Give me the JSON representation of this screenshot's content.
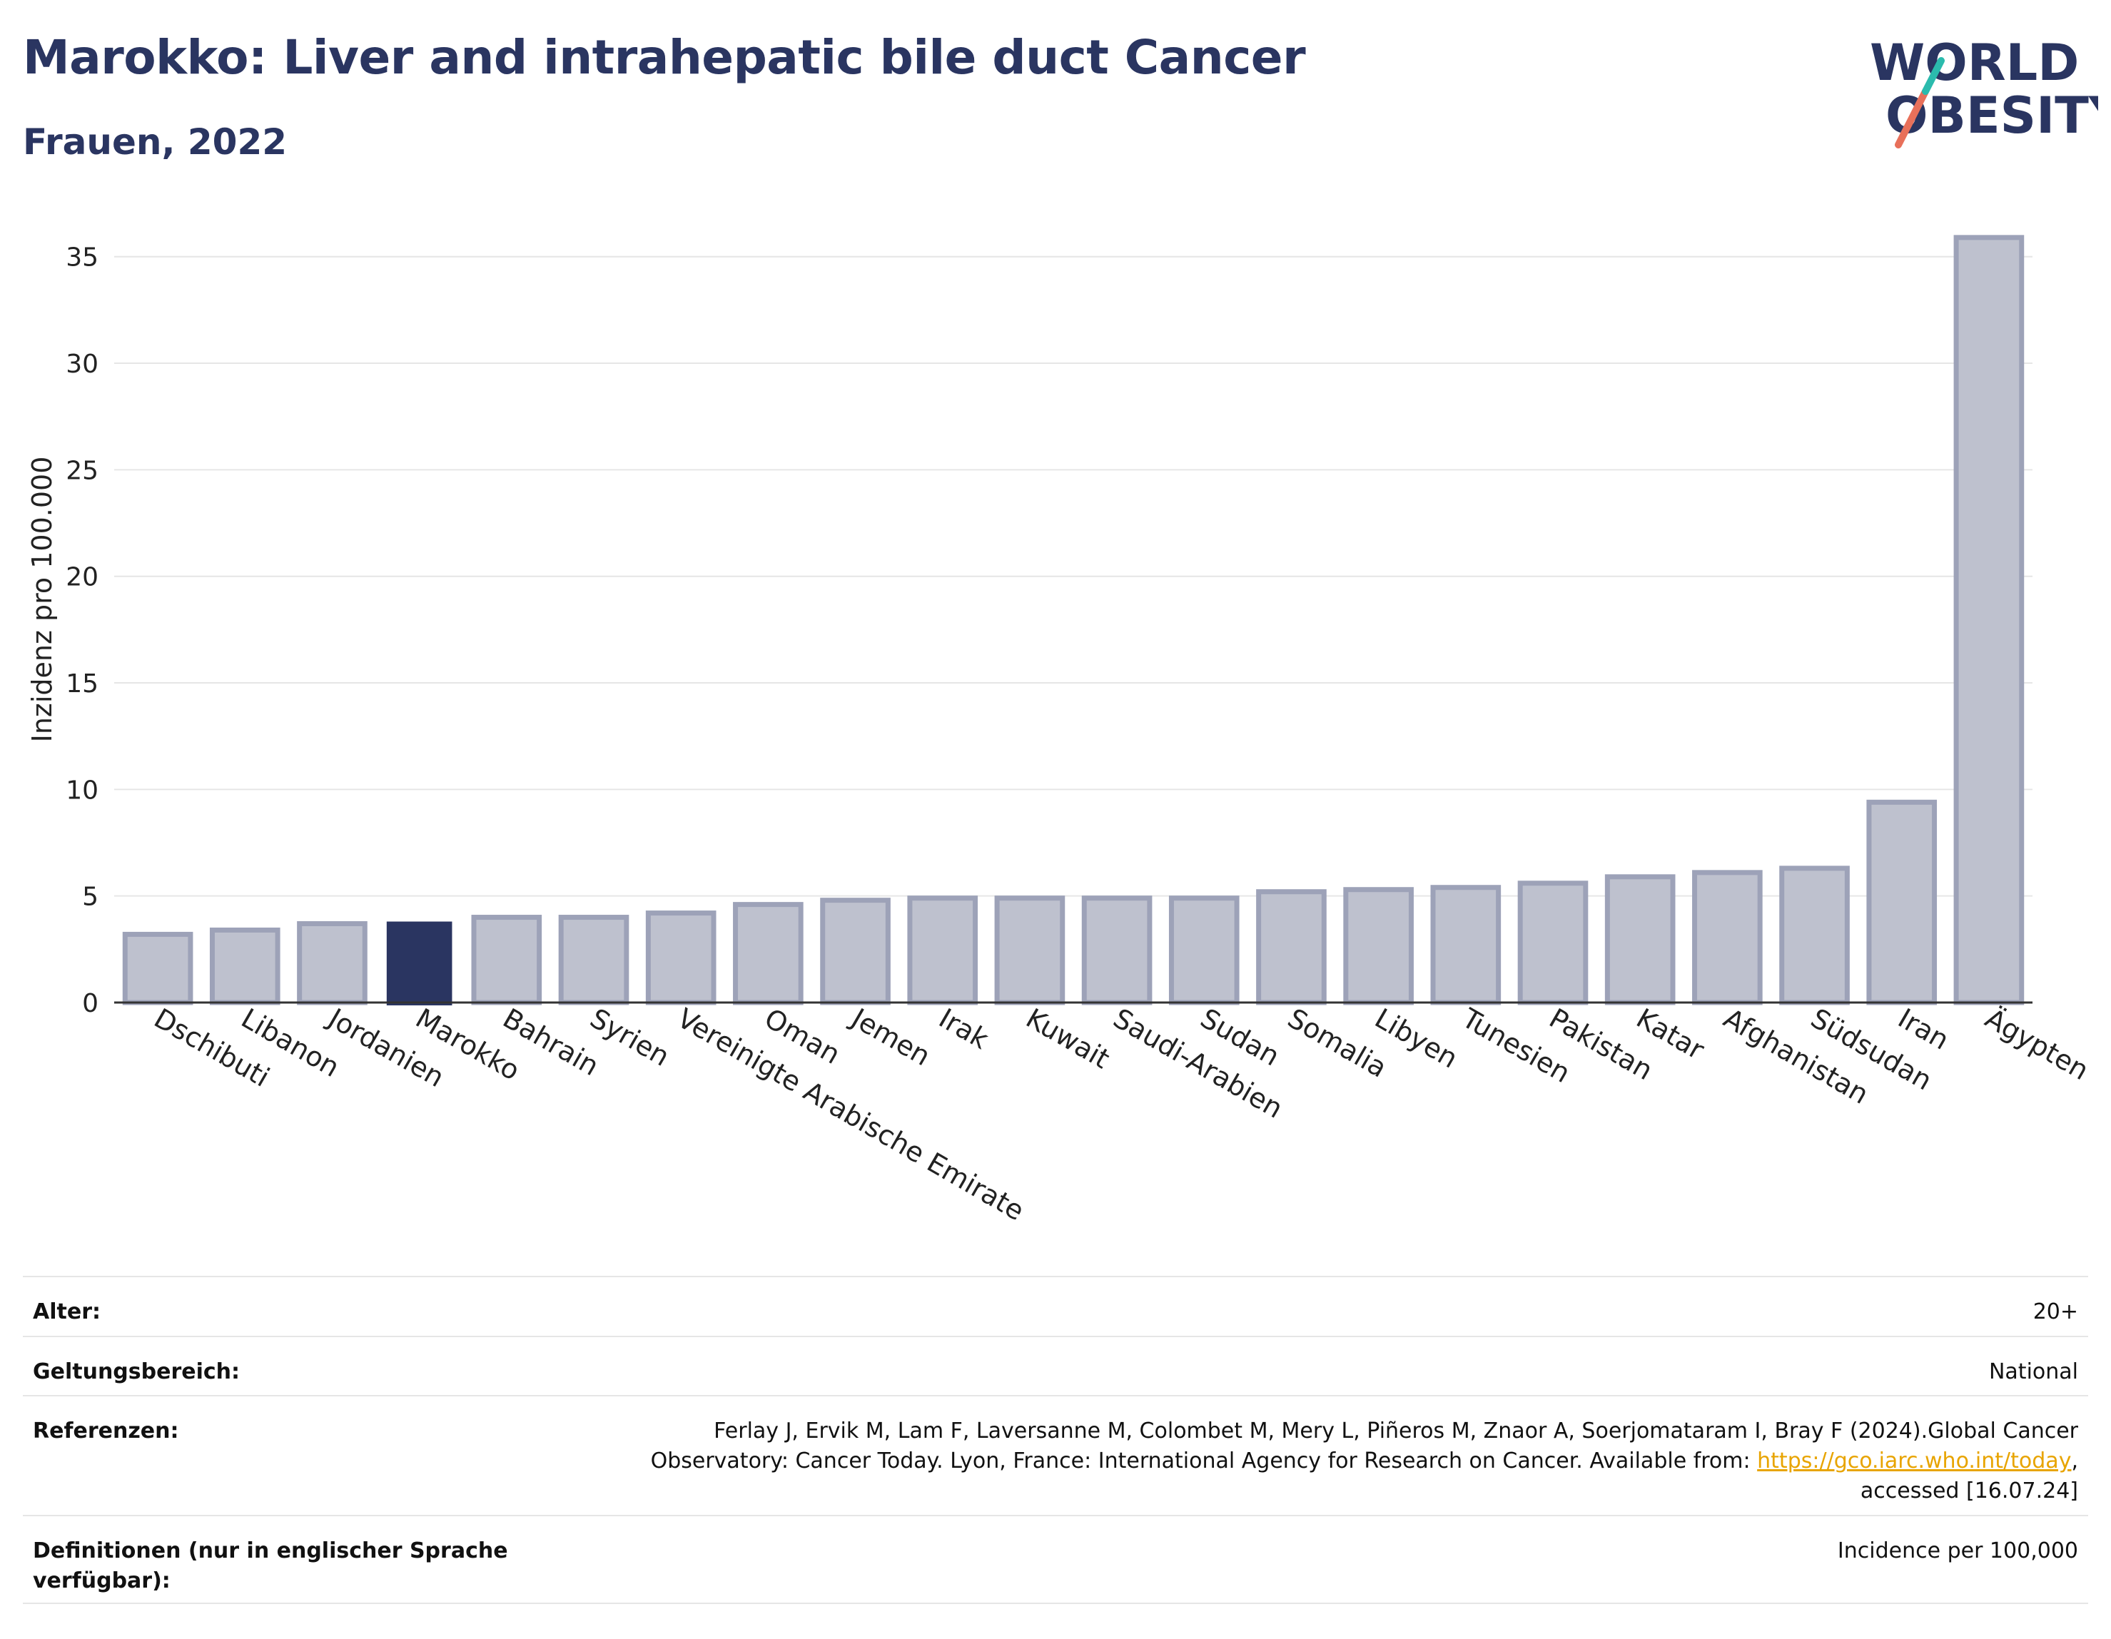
{
  "header": {
    "title": "Marokko: Liver and intrahepatic bile duct Cancer",
    "subtitle": "Frauen, 2022"
  },
  "logo": {
    "line1": "WORLD",
    "line2": "OBESITY"
  },
  "chart_data": {
    "type": "bar",
    "title": "Marokko: Liver and intrahepatic bile duct Cancer",
    "subtitle": "Frauen, 2022",
    "xlabel": "",
    "ylabel": "Inzidenz pro 100.000",
    "ylim": [
      0,
      37
    ],
    "yticks": [
      0,
      5,
      10,
      15,
      20,
      25,
      30,
      35
    ],
    "grid": true,
    "highlight": "Marokko",
    "colors": {
      "bar": "#bec1ce",
      "bar_border": "#9da2b8",
      "highlight": "#2a3561"
    },
    "categories": [
      "Dschibuti",
      "Libanon",
      "Jordanien",
      "Marokko",
      "Bahrain",
      "Syrien",
      "Vereinigte Arabische Emirate",
      "Oman",
      "Jemen",
      "Irak",
      "Kuwait",
      "Saudi-Arabien",
      "Sudan",
      "Somalia",
      "Libyen",
      "Tunesien",
      "Pakistan",
      "Katar",
      "Afghanistan",
      "Südsudan",
      "Iran",
      "Ägypten"
    ],
    "values": [
      3.2,
      3.4,
      3.7,
      3.8,
      4.0,
      4.0,
      4.2,
      4.6,
      4.8,
      4.9,
      4.9,
      4.9,
      4.9,
      5.2,
      5.3,
      5.4,
      5.6,
      5.9,
      6.1,
      6.3,
      9.4,
      35.9
    ]
  },
  "meta": {
    "age": {
      "label": "Alter:",
      "value": "20+"
    },
    "scope": {
      "label": "Geltungsbereich:",
      "value": "National"
    },
    "references": {
      "label": "Referenzen:",
      "line1": "Ferlay J, Ervik M, Lam F, Laversanne M, Colombet M, Mery L, Piñeros M, Znaor A, Soerjomataram I, Bray F (2024).Global Cancer",
      "line2_prefix": "Observatory: Cancer Today. Lyon, France: International Agency for Research on Cancer. Available from: ",
      "link": "https://gco.iarc.who.int/today",
      "line2_suffix": ",",
      "line3": "accessed [16.07.24]"
    },
    "definitions": {
      "label": "Definitionen (nur in englischer Sprache verfügbar):",
      "value": "Incidence per 100,000"
    }
  }
}
